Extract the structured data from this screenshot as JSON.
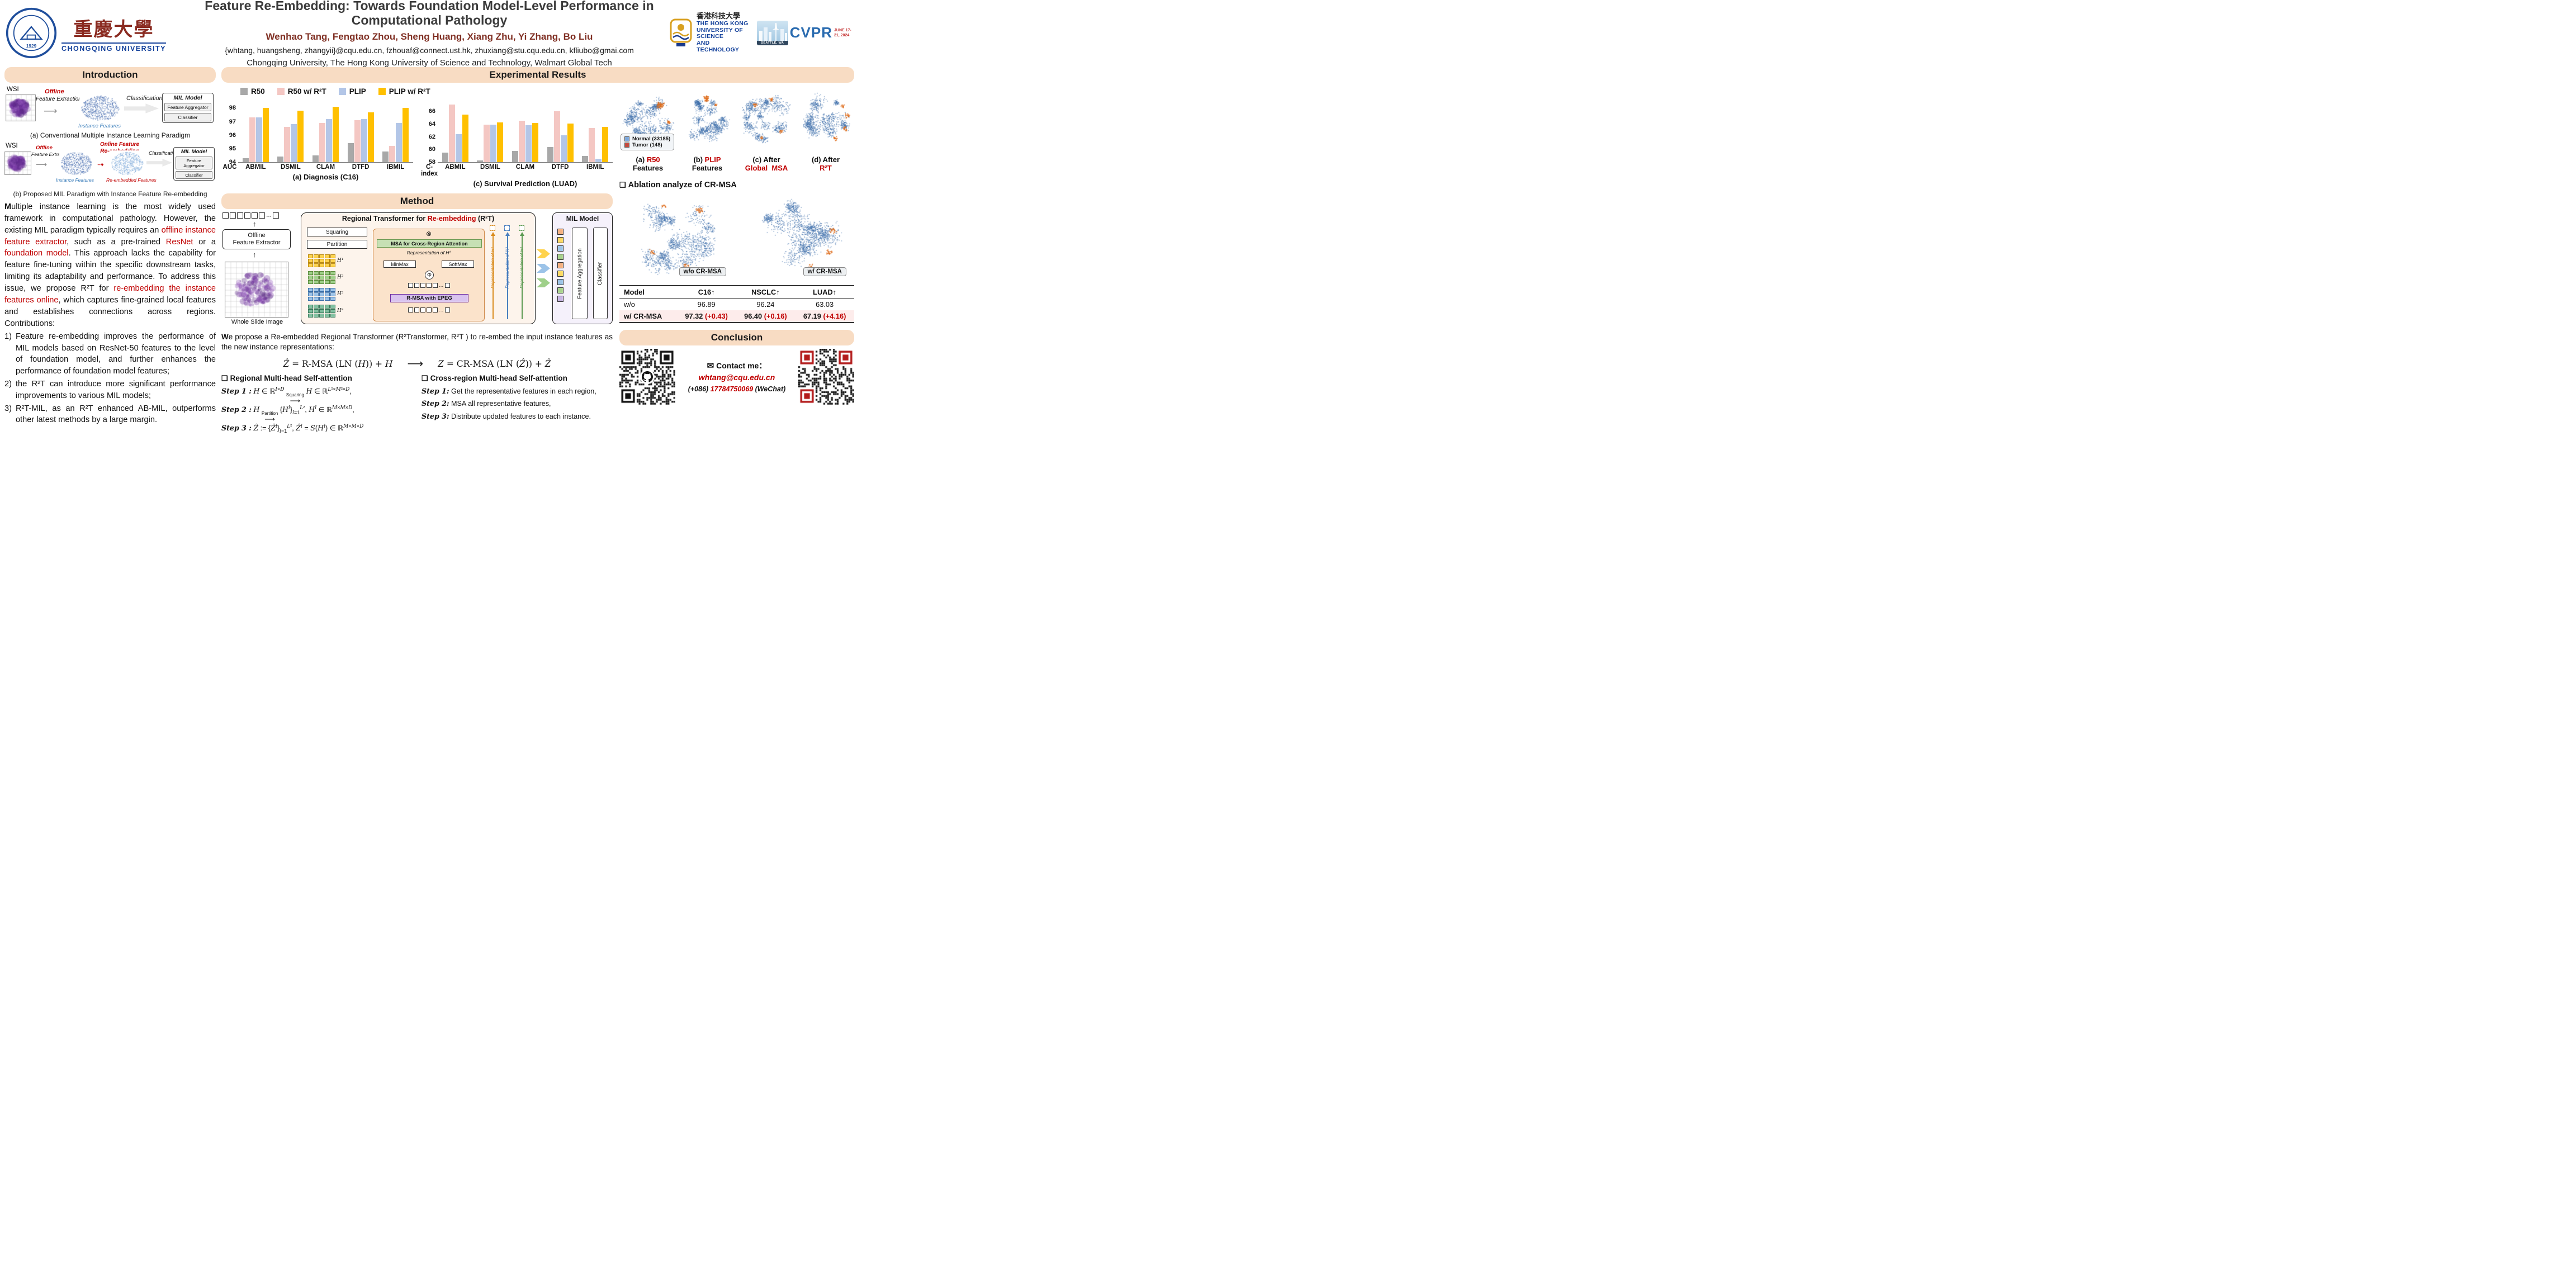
{
  "ui": {
    "square_bullet": "❑",
    "up_arrow": "↑",
    "long_arrow": "⟶",
    "dots": "…"
  },
  "header": {
    "title": "Feature Re-Embedding: Towards Foundation Model-Level Performance in Computational Pathology",
    "authors": "Wenhao Tang, Fengtao Zhou, Sheng Huang, Xiang Zhu, Yi Zhang, Bo Liu",
    "emails": "{whtang, huangsheng, zhangyii}@cqu.edu.cn, fzhouaf@connect.ust.hk, zhuxiang@stu.cqu.edu.cn, kfliubo@gmai.com",
    "affiliations": "Chongqing University, The Hong Kong University of Science and Technology, Walmart Global Tech",
    "cqu_logo": {
      "zh": "重慶大學",
      "en": "CHONGQING UNIVERSITY"
    },
    "hkust_logo": {
      "zh": "香港科技大學",
      "en1": "THE HONG KONG",
      "en2": "UNIVERSITY OF SCIENCE",
      "en3": "AND TECHNOLOGY"
    },
    "cvpr": {
      "name": "CVPR",
      "location": "SEATTLE, WA",
      "dates": "JUNE 17-21, 2024"
    }
  },
  "intro": {
    "section_title": "Introduction",
    "fig_a": {
      "wsi": "WSI",
      "offline": "Offline",
      "feature_extraction": "Feature Extraction",
      "instance_features": "Instance Features",
      "classification": "Classification",
      "mil_model": "MIL Model",
      "feature_aggregator": "Feature Aggregator",
      "classifier": "Classifier",
      "caption": "(a) Conventional Multiple Instance Learning Paradigm"
    },
    "fig_b": {
      "wsi": "WSI",
      "offline": "Offline",
      "feature_extraction": "Feature Extraction",
      "online_html": "Online Feature<br>Re-embedding",
      "instance_features": "Instance Features",
      "reembedded": "Re-embedded Features",
      "classification": "Classification",
      "mil_model": "MIL Model",
      "feature_aggregator": "Feature Aggregator",
      "classifier": "Classifier",
      "caption": "(b) Proposed MIL Paradigm with Instance Feature Re-embedding"
    },
    "body_html": "<b>M</b>ultiple instance learning is the most widely used framework in computational pathology. However, the existing MIL paradigm typically requires an <span class='red'>offline instance feature extractor</span>, such as a pre-trained <span class='red'>ResNet</span> or a <span class='red'>foundation model</span>. This approach lacks the capability for feature fine-tuning within the specific downstream tasks, limiting its adaptability and performance. To address this issue, we propose R²T for <span class='red'>re-embedding the instance features online</span>, which captures fine-grained local features and establishes connections across regions. Contributions:",
    "contributions": [
      "Feature re-embedding improves the performance of MIL models based on ResNet-50 features to the level of foundation model, and further enhances the performance of foundation model features;",
      "the R²T can introduce more significant performance improvements to various MIL models;",
      "R²T-MIL, as an R²T enhanced AB-MIL, outperforms other latest methods by a large margin."
    ]
  },
  "results": {
    "section_title": "Experimental Results",
    "tsne": {
      "legend": [
        {
          "label": "Normal (33185)",
          "color": "#7ba6d9"
        },
        {
          "label": "Tumor (148)",
          "color": "#bf4a3e"
        }
      ],
      "captions_html": [
        "(a) <span class='red'>R50</span><br>Features",
        "(b) <span class='red'>PLIP</span><br>Features",
        "(c) After<br><span class='red'>Global&nbsp; MSA</span>",
        "(d) After<br><span class='red'>R²T</span>"
      ]
    }
  },
  "chart_data": [
    {
      "type": "bar",
      "title": "(a) Diagnosis (C16)",
      "ylabel": "AUC",
      "ylim": [
        94,
        98.6
      ],
      "yticks": [
        94,
        95,
        96,
        97,
        98
      ],
      "categories": [
        "ABMIL",
        "DSMIL",
        "CLAM",
        "DTFD",
        "IBMIL"
      ],
      "series": [
        {
          "name": "R50",
          "color": "#a8a8a8",
          "values": [
            94.3,
            94.4,
            94.5,
            95.4,
            94.8
          ]
        },
        {
          "name": "R50 w/ R²T",
          "color": "#f4c7c3",
          "values": [
            97.3,
            96.6,
            96.9,
            97.1,
            95.2
          ]
        },
        {
          "name": "PLIP",
          "color": "#b3c6e7",
          "values": [
            97.3,
            96.8,
            97.2,
            97.2,
            96.9
          ]
        },
        {
          "name": "PLIP w/ R²T",
          "color": "#ffc000",
          "values": [
            98.0,
            97.8,
            98.1,
            97.7,
            98.0
          ]
        }
      ]
    },
    {
      "type": "bar",
      "title": "(c) Survival Prediction (LUAD)",
      "ylabel": "C-index",
      "ylim": [
        58,
        67.8
      ],
      "yticks": [
        58,
        60,
        62,
        64,
        66
      ],
      "categories": [
        "ABMIL",
        "DSMIL",
        "CLAM",
        "DTFD",
        "IBMIL"
      ],
      "series": [
        {
          "name": "R50",
          "color": "#a8a8a8",
          "values": [
            59.5,
            58.3,
            59.8,
            60.4,
            59.0
          ]
        },
        {
          "name": "R50 w/ R²T",
          "color": "#f4c7c3",
          "values": [
            67.1,
            63.9,
            64.5,
            66.0,
            63.4
          ]
        },
        {
          "name": "PLIP",
          "color": "#b3c6e7",
          "values": [
            62.4,
            63.9,
            63.8,
            62.2,
            58.5
          ]
        },
        {
          "name": "PLIP w/ R²T",
          "color": "#ffc000",
          "values": [
            65.5,
            64.3,
            64.2,
            64.1,
            63.6
          ]
        }
      ]
    }
  ],
  "method": {
    "section_title": "Method",
    "diagram": {
      "offline_extractor_html": "Offline<br>Feature Extractor",
      "wsi_caption": "Whole Slide Image",
      "transformer_title_html": "Regional Transformer for <span class='red'>Re-embedding</span> (R²T)",
      "squaring": "Squaring",
      "partition": "Partition",
      "msa_cross": "MSA for Cross-Region Attention",
      "repr_h1": "Representation of H¹",
      "minmax": "MinMax",
      "softmax": "SoftMax",
      "phi": "Φ",
      "otimes": "⊗",
      "rmsa": "R-MSA with EPEG",
      "repr_h2": "Representation of H²",
      "repr_h3": "Representation of H³",
      "repr_h4": "Representation of H⁴",
      "region_labels": [
        "H¹",
        "H²",
        "H³",
        "H⁴"
      ],
      "mil_model": "MIL Model",
      "feature_aggregation": "Feature Aggregation",
      "classifier": "Classifier"
    },
    "body_html": "<b>W</b>e propose a Re-embedded Regional Transformer (R²Transformer, R²T ) to re-embed the input instance features as the new instance representations:",
    "eq_left_html": "<i>Ẑ</i> = R-MSA (LN (<i>H</i>)) + <i>H</i>",
    "eq_right_html": "<i>Z</i> = CR-MSA (LN (<i>Ẑ</i>)) + <i>Ẑ</i>",
    "regional": {
      "header": "Regional Multi-head Self-attention",
      "steps_html": [
        "<span class='stepname'>Step 1 :</span> <span class='math'>H</span> ∈ ℝ<sup><span class='math'>I</span>×<span class='math'>D</span></sup> <span class='map'><span class='maplab'>Squaring</span><span class='maparrow'>⟶</span></span> <span class='math'>H</span> ∈ ℝ<sup><span class='math'>L</span>²×<span class='math'>M</span>²×<span class='math'>D</span></sup>,",
        "<span class='stepname'>Step 2 :</span> <span class='math'>H</span> <span class='map'><span class='maplab'>Partition</span><span class='maparrow'>⟶</span></span> {<span class='math'>H</span><sup><span class='math'>l</span></sup>}<sub><span class='math'>l</span>=1</sub><sup><span class='math'>L</span>²</sup>, <span class='math'>H</span><sup><span class='math'>l</span></sup> ∈ ℝ<sup><span class='math'>M</span>×<span class='math'>M</span>×<span class='math'>D</span></sup>,",
        "<span class='stepname'>Step 3 :</span> <span class='math'>Ẑ</span> := {<span class='math'>Ẑ</span><sup><span class='math'>l</span></sup>}<sub><span class='math'>l</span>=1</sub><sup><span class='math'>L</span>²</sup>, <span class='math'>Ẑ</span><sup><span class='math'>l</span></sup> = <span class='math'>S</span>(<span class='math'>H</span><sup><span class='math'>l</span></sup>) ∈ ℝ<sup><span class='math'>M</span>×<span class='math'>M</span>×<span class='math'>D</span></sup>"
      ]
    },
    "cross": {
      "header": "Cross-region Multi-head Self-attention",
      "steps_html": [
        "<span class='stepname'>Step 1:</span> Get the representative features in each region,",
        "<span class='stepname'>Step 2:</span> MSA all representative features,",
        "<span class='stepname'>Step 3:</span> Distribute updated features to each instance."
      ]
    }
  },
  "ablation": {
    "title": "Ablation analyze of CR-MSA",
    "tags": [
      "w/o CR-MSA",
      "w/ CR-MSA"
    ],
    "table": {
      "columns": [
        "Model",
        "C16↑",
        "NSCLC↑",
        "LUAD↑"
      ],
      "rows": [
        {
          "model": "w/o",
          "c16": "96.89",
          "nsclc": "96.24",
          "luad": "63.03"
        },
        {
          "model": "w/ CR-MSA",
          "c16": "97.32",
          "c16_gain": "(+0.43)",
          "nsclc": "96.40",
          "nsclc_gain": "(+0.16)",
          "luad": "67.19",
          "luad_gain": "(+4.16)"
        }
      ]
    }
  },
  "conclusion": {
    "section_title": "Conclusion",
    "envelope_icon": "✉",
    "contact_label": "Contact me：",
    "email": "whtang@cqu.edu.cn",
    "phone_html": "(+086) <span class='red'>17784750069</span> (WeChat)"
  }
}
